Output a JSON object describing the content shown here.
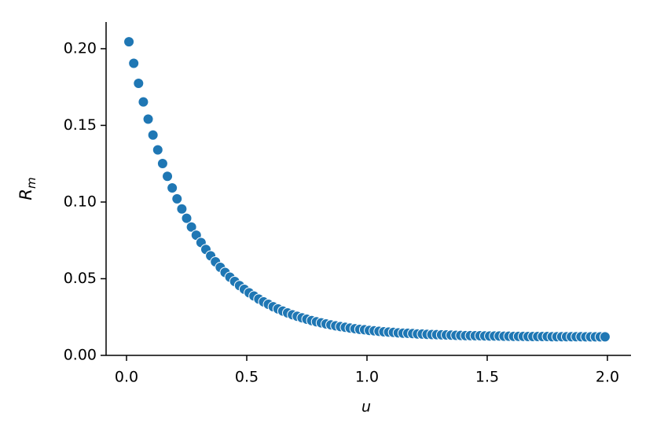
{
  "chart_data": {
    "type": "scatter",
    "xlabel": "u",
    "ylabel": "R",
    "ylabel_subscript": "m",
    "color": "#1f77b4",
    "grid": false,
    "xlim": [
      -0.085,
      2.098
    ],
    "ylim": [
      0,
      0.2174
    ],
    "xticks": [
      {
        "value": 0,
        "label": "0.0"
      },
      0.5,
      {
        "value": 1,
        "label": "1.0"
      },
      1.5,
      {
        "value": 2,
        "label": "2.0"
      }
    ],
    "yticks": [
      {
        "value": 0,
        "label": "0.00"
      },
      {
        "value": 0.05,
        "label": "0.05"
      },
      {
        "value": 0.1,
        "label": "0.10"
      },
      {
        "value": 0.15,
        "label": "0.15"
      },
      {
        "value": 0.2,
        "label": "0.20"
      }
    ],
    "x": [
      0.01,
      0.03,
      0.05,
      0.07,
      0.09,
      0.11,
      0.13,
      0.15,
      0.17,
      0.19,
      0.21,
      0.23,
      0.25,
      0.27,
      0.29,
      0.31,
      0.33,
      0.35,
      0.37,
      0.39,
      0.41,
      0.43,
      0.45,
      0.47,
      0.49,
      0.51,
      0.53,
      0.55,
      0.57,
      0.59,
      0.61,
      0.63,
      0.65,
      0.67,
      0.69,
      0.71,
      0.73,
      0.75,
      0.77,
      0.79,
      0.81,
      0.83,
      0.85,
      0.87,
      0.89,
      0.91,
      0.93,
      0.95,
      0.97,
      0.99,
      1.01,
      1.03,
      1.05,
      1.07,
      1.09,
      1.11,
      1.13,
      1.15,
      1.17,
      1.19,
      1.21,
      1.23,
      1.25,
      1.27,
      1.29,
      1.31,
      1.33,
      1.35,
      1.37,
      1.39,
      1.41,
      1.43,
      1.45,
      1.47,
      1.49,
      1.51,
      1.53,
      1.55,
      1.57,
      1.59,
      1.61,
      1.63,
      1.65,
      1.67,
      1.69,
      1.71,
      1.73,
      1.75,
      1.77,
      1.79,
      1.81,
      1.83,
      1.85,
      1.87,
      1.89,
      1.91,
      1.93,
      1.95,
      1.97,
      1.99
    ],
    "values": [
      0.2045,
      0.1905,
      0.1774,
      0.1653,
      0.1541,
      0.1437,
      0.134,
      0.1251,
      0.1168,
      0.1092,
      0.1021,
      0.0955,
      0.0894,
      0.0837,
      0.0784,
      0.0736,
      0.0691,
      0.0649,
      0.061,
      0.0574,
      0.0541,
      0.051,
      0.0482,
      0.0455,
      0.0431,
      0.0408,
      0.0387,
      0.0367,
      0.0349,
      0.0333,
      0.0317,
      0.0303,
      0.0289,
      0.0277,
      0.0265,
      0.0255,
      0.0245,
      0.0236,
      0.0227,
      0.0219,
      0.0212,
      0.0205,
      0.0199,
      0.0193,
      0.0188,
      0.0183,
      0.0178,
      0.0174,
      0.017,
      0.0167,
      0.0163,
      0.016,
      0.0157,
      0.0154,
      0.0152,
      0.015,
      0.0147,
      0.0145,
      0.0144,
      0.0142,
      0.014,
      0.0139,
      0.0137,
      0.0136,
      0.0135,
      0.0134,
      0.0133,
      0.0132,
      0.0131,
      0.013,
      0.0129,
      0.0129,
      0.0128,
      0.0128,
      0.0127,
      0.0126,
      0.0126,
      0.0126,
      0.0125,
      0.0125,
      0.0124,
      0.0124,
      0.0124,
      0.0123,
      0.0123,
      0.0123,
      0.0123,
      0.0123,
      0.0122,
      0.0122,
      0.0122,
      0.0122,
      0.0122,
      0.0122,
      0.0122,
      0.0121,
      0.0121,
      0.0121,
      0.0121,
      0.0121
    ]
  }
}
